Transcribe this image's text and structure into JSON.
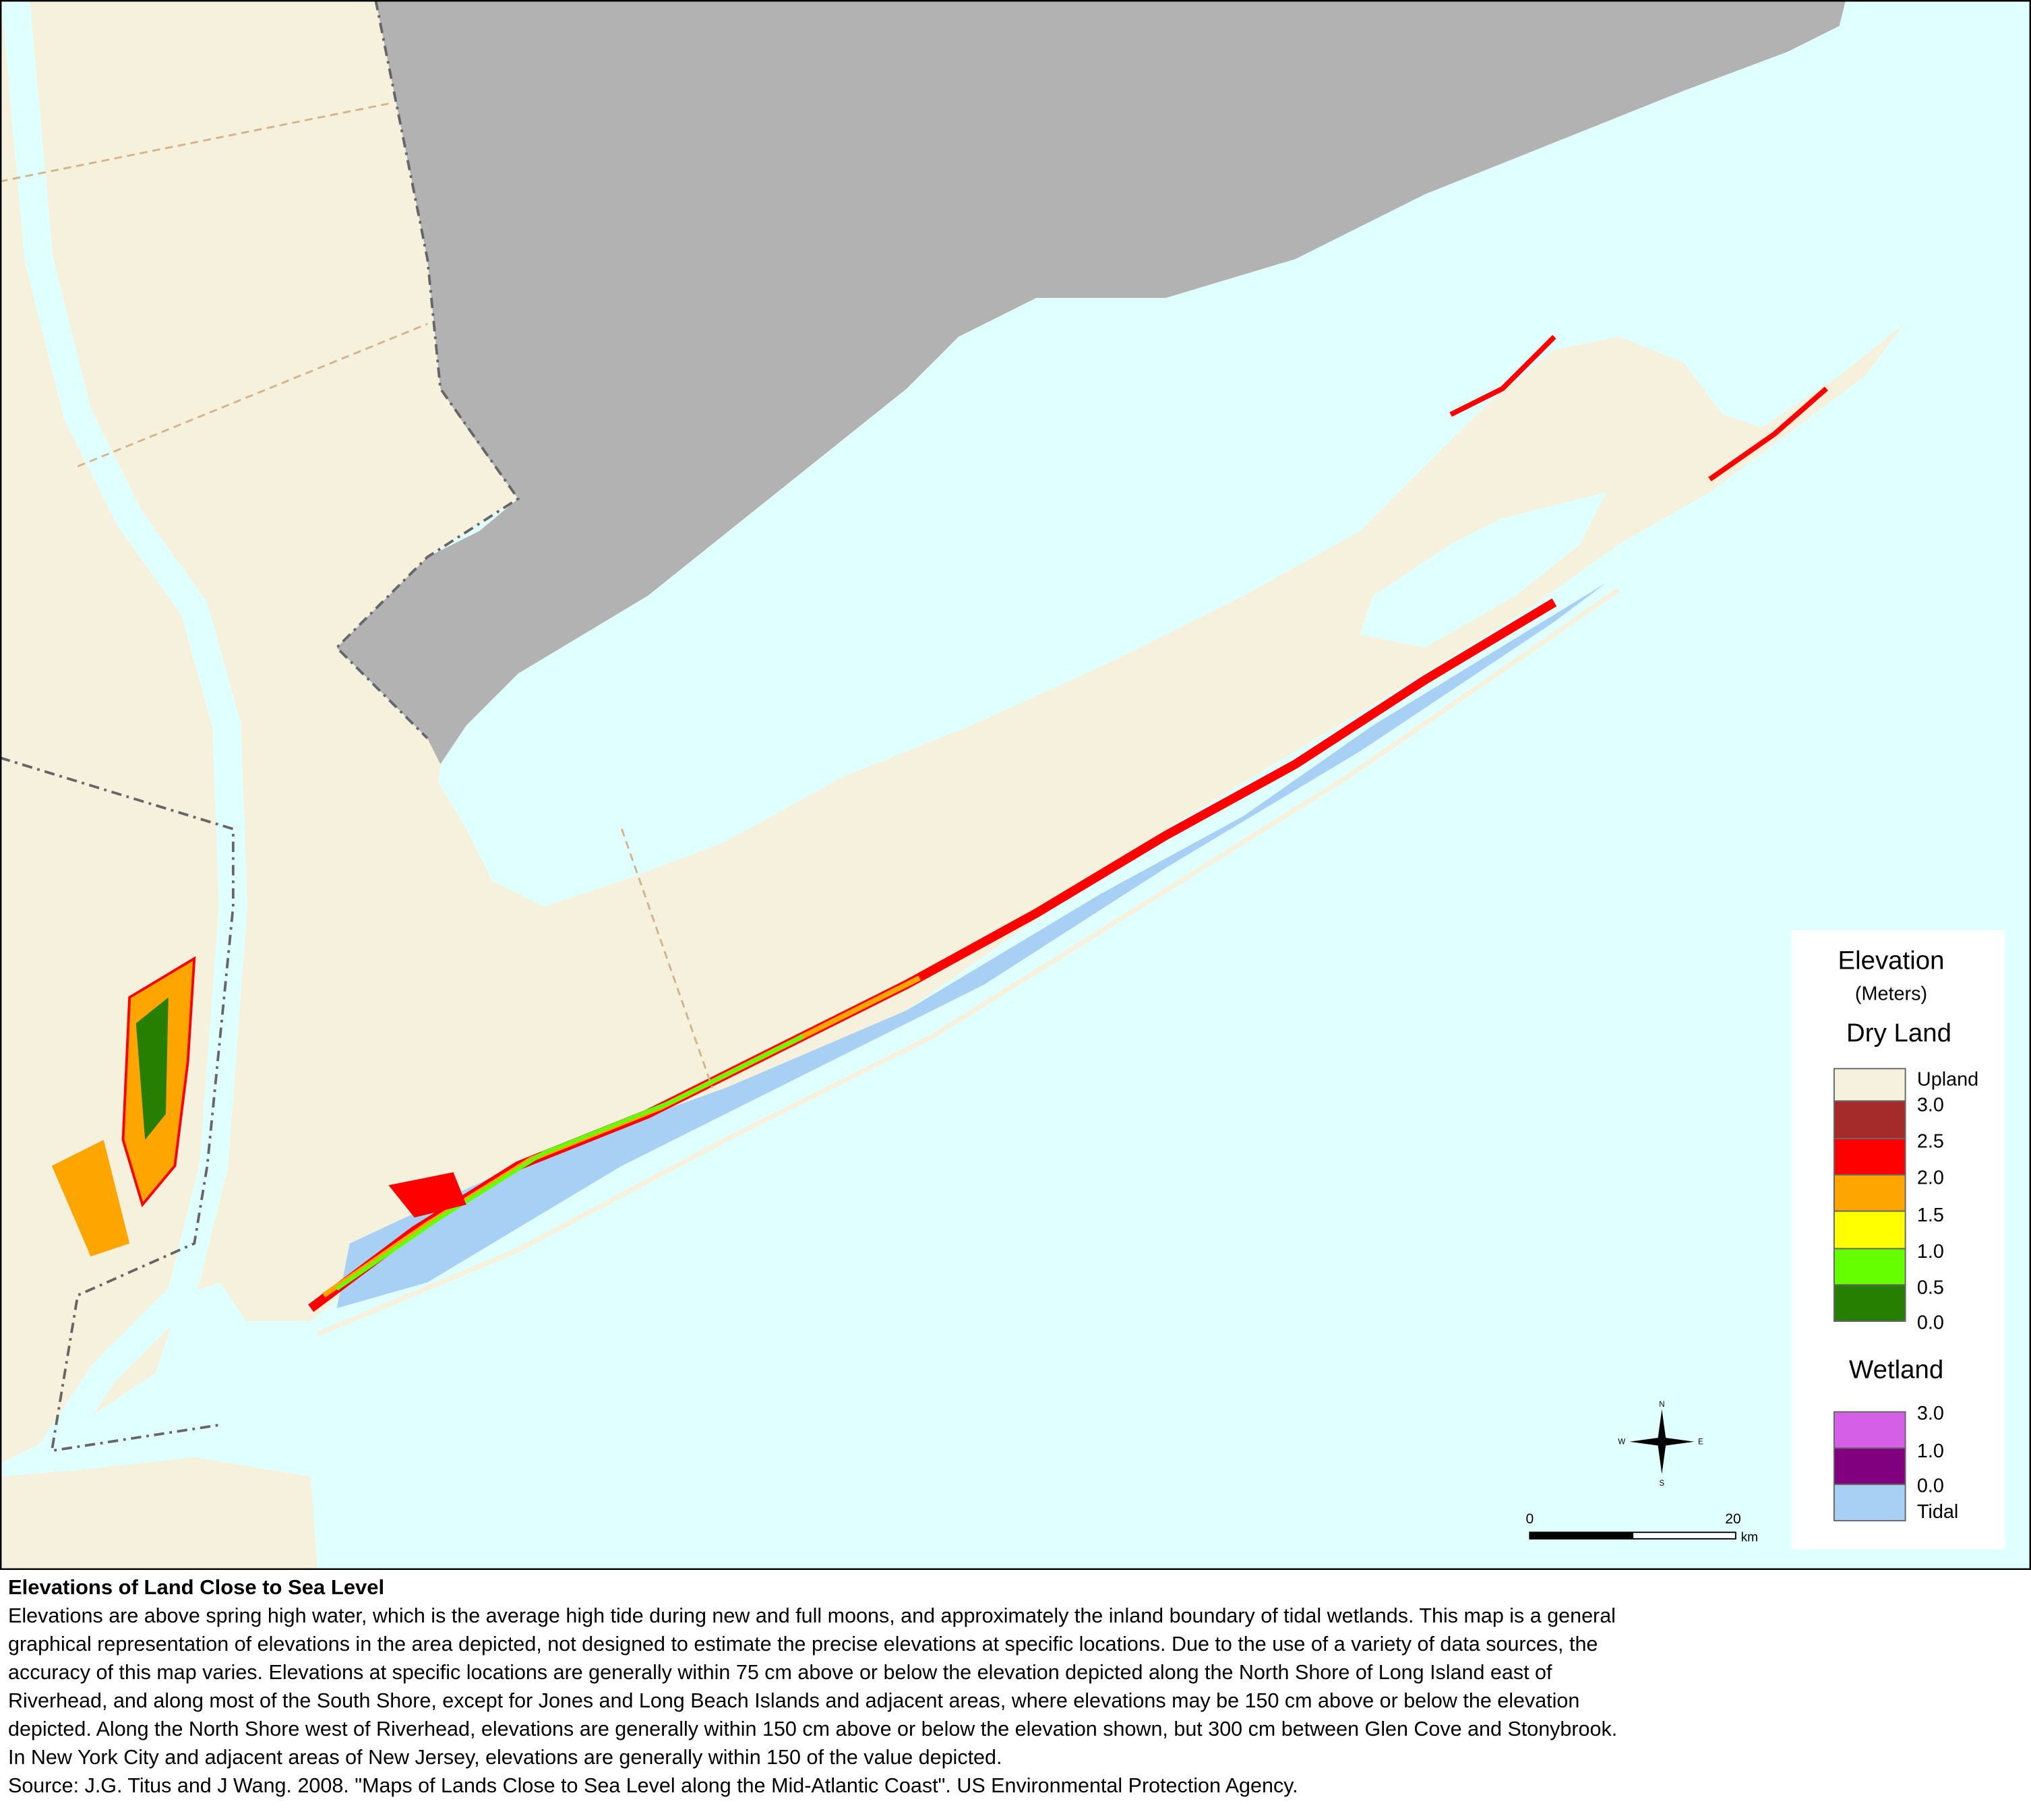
{
  "legend": {
    "title": "Elevation",
    "units": "(Meters)",
    "dry_land": {
      "title": "Dry Land",
      "upland": "Upland",
      "labels": [
        "3.0",
        "2.5",
        "2.0",
        "1.5",
        "1.0",
        "0.5",
        "0.0"
      ]
    },
    "wetland": {
      "title": "Wetland",
      "labels": [
        "3.0",
        "1.0",
        "0.0"
      ],
      "tidal": "Tidal"
    }
  },
  "scale_bar": {
    "start": "0",
    "end": "20",
    "unit": "km"
  },
  "compass": {
    "n": "N",
    "s": "S",
    "e": "E",
    "w": "W"
  },
  "caption": {
    "title": "Elevations of Land Close to Sea Level",
    "lines": [
      "Elevations are above spring high water, which is the average high tide during new and full moons, and approximately the inland boundary of tidal wetlands.   This map is a general",
      "graphical representation of elevations in the area depicted, not designed to estimate the precise elevations at specific locations. Due to the use of a variety of data sources, the",
      "accuracy of this map varies.  Elevations at specific locations are generally within 75 cm above or below the elevation depicted along the North Shore of Long Island east of",
      "Riverhead, and along most of the South Shore, except for Jones and Long Beach Islands and adjacent areas, where elevations may be 150 cm above or below the elevation",
      "depicted.  Along the North Shore west of Riverhead, elevations are generally within 150 cm above or below the elevation shown, but 300 cm between Glen Cove and Stonybrook.",
      "In New York City and adjacent areas of New Jersey, elevations are generally within 150 of the value depicted.",
      "Source:  J.G. Titus and J Wang.  2008.   \"Maps of Lands Close to Sea Level along the Mid-Atlantic Coast\".  US Environmental Protection Agency."
    ]
  }
}
